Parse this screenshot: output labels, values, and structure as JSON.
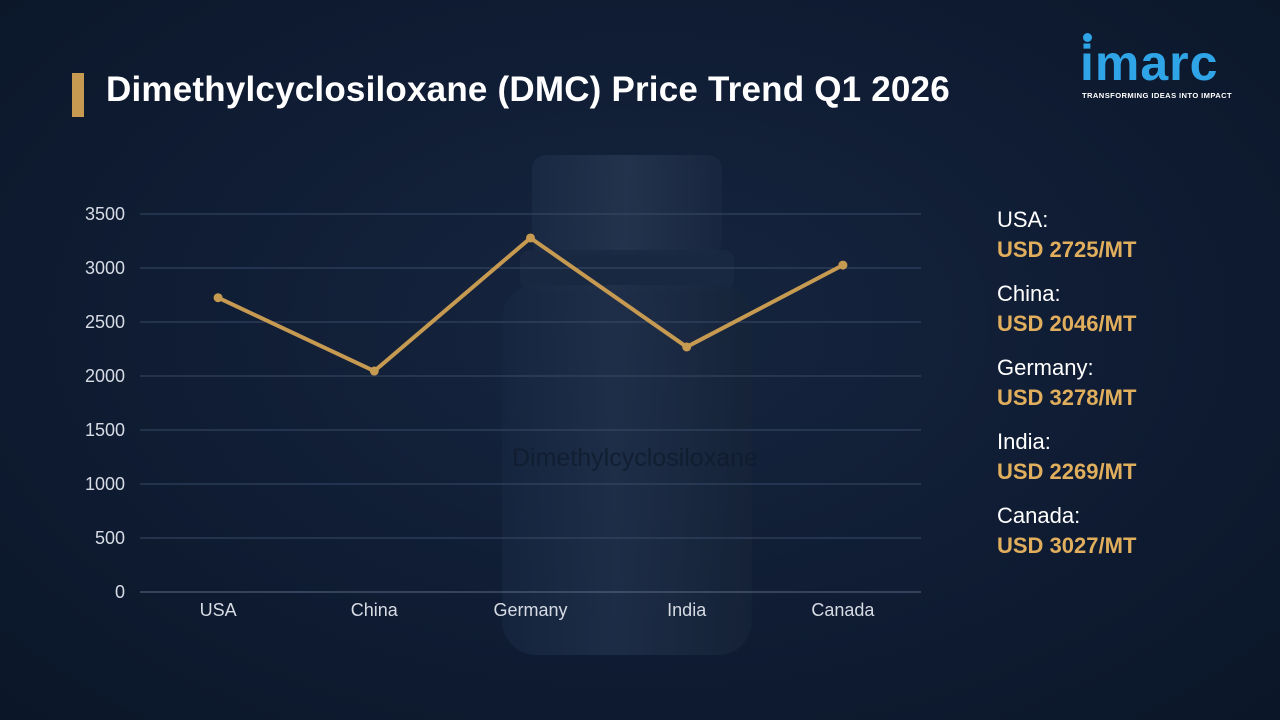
{
  "header": {
    "title": "Dimethylcyclosiloxane (DMC) Price Trend Q1 2026"
  },
  "logo": {
    "wordmark": "imarc",
    "tagline": "TRANSFORMING IDEAS INTO IMPACT"
  },
  "background": {
    "bottle_label": "Dimethylcyclosiloxane"
  },
  "colors": {
    "background": "#0d1a30",
    "accent": "#c79a52",
    "price_text": "#e0ae5c",
    "logo": "#2fa4e7",
    "grid": "#3a4a66"
  },
  "chart_data": {
    "type": "line",
    "title": "Dimethylcyclosiloxane (DMC) Price Trend Q1 2026",
    "categories": [
      "USA",
      "China",
      "Germany",
      "India",
      "Canada"
    ],
    "series": [
      {
        "values": [
          2725,
          2046,
          3278,
          2269,
          3027
        ]
      }
    ],
    "yticks": [
      "0",
      "500",
      "1000",
      "1500",
      "2000",
      "2500",
      "3000",
      "3500"
    ],
    "ylim": [
      0,
      3500
    ],
    "xlabel": "",
    "ylabel": "",
    "grid": true,
    "legend": "right"
  },
  "legend": {
    "items": [
      {
        "country": "USA:",
        "price": "USD 2725/MT"
      },
      {
        "country": "China:",
        "price": "USD 2046/MT"
      },
      {
        "country": "Germany:",
        "price": "USD 3278/MT"
      },
      {
        "country": "India:",
        "price": "USD 2269/MT"
      },
      {
        "country": "Canada:",
        "price": "USD 3027/MT"
      }
    ]
  }
}
